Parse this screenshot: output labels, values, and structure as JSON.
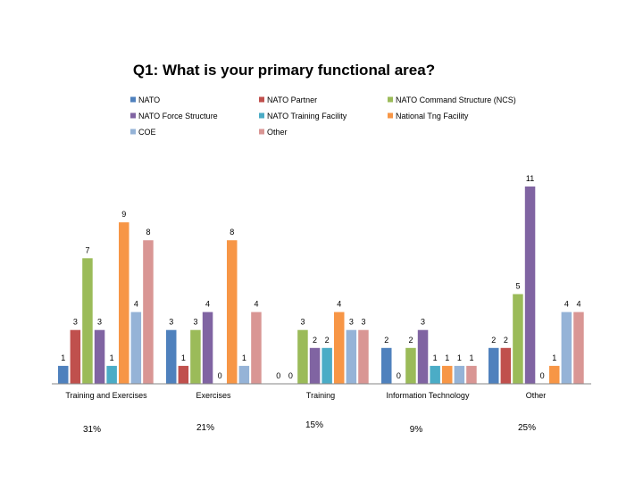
{
  "chart_data": {
    "type": "bar",
    "title": "Q1: What is your primary functional area?",
    "xlabel": "",
    "ylabel": "",
    "ylim": [
      0,
      11
    ],
    "grid": false,
    "legend_position": "top",
    "categories": [
      "Training and Exercises",
      "Exercises",
      "Training",
      "Information Technology",
      "Other"
    ],
    "series": [
      {
        "name": "NATO",
        "color": "#4f81bd",
        "values": [
          1,
          3,
          0,
          2,
          2
        ]
      },
      {
        "name": "NATO Partner",
        "color": "#c0504d",
        "values": [
          3,
          1,
          0,
          0,
          2
        ]
      },
      {
        "name": "NATO Command Structure (NCS)",
        "color": "#9bbb59",
        "values": [
          7,
          3,
          3,
          2,
          5
        ]
      },
      {
        "name": "NATO Force Structure",
        "color": "#8064a2",
        "values": [
          3,
          4,
          2,
          3,
          11
        ]
      },
      {
        "name": "NATO Training Facility",
        "color": "#4bacc6",
        "values": [
          1,
          0,
          2,
          1,
          0
        ]
      },
      {
        "name": "National Tng Facility",
        "color": "#f79646",
        "values": [
          9,
          8,
          4,
          1,
          1
        ]
      },
      {
        "name": "COE",
        "color": "#95b3d7",
        "values": [
          4,
          1,
          3,
          1,
          4
        ]
      },
      {
        "name": "Other",
        "color": "#d99694",
        "values": [
          8,
          4,
          3,
          1,
          4
        ]
      }
    ],
    "category_percentages": [
      "31%",
      "21%",
      "15%",
      "9%",
      "25%"
    ],
    "value_labels": [
      [
        "1",
        "3",
        "7",
        "3",
        "1",
        "9",
        "4",
        "8"
      ],
      [
        "3",
        "1",
        "3",
        "4",
        "0",
        "8",
        "1",
        "4"
      ],
      [
        "0",
        "0",
        "3",
        "2",
        "2",
        "4",
        "3",
        "3"
      ],
      [
        "2",
        "0",
        "2",
        "3",
        "1",
        "1",
        "1",
        "1"
      ],
      [
        "2",
        "2",
        "5",
        "11",
        "0",
        "1",
        "4",
        "4"
      ]
    ]
  }
}
